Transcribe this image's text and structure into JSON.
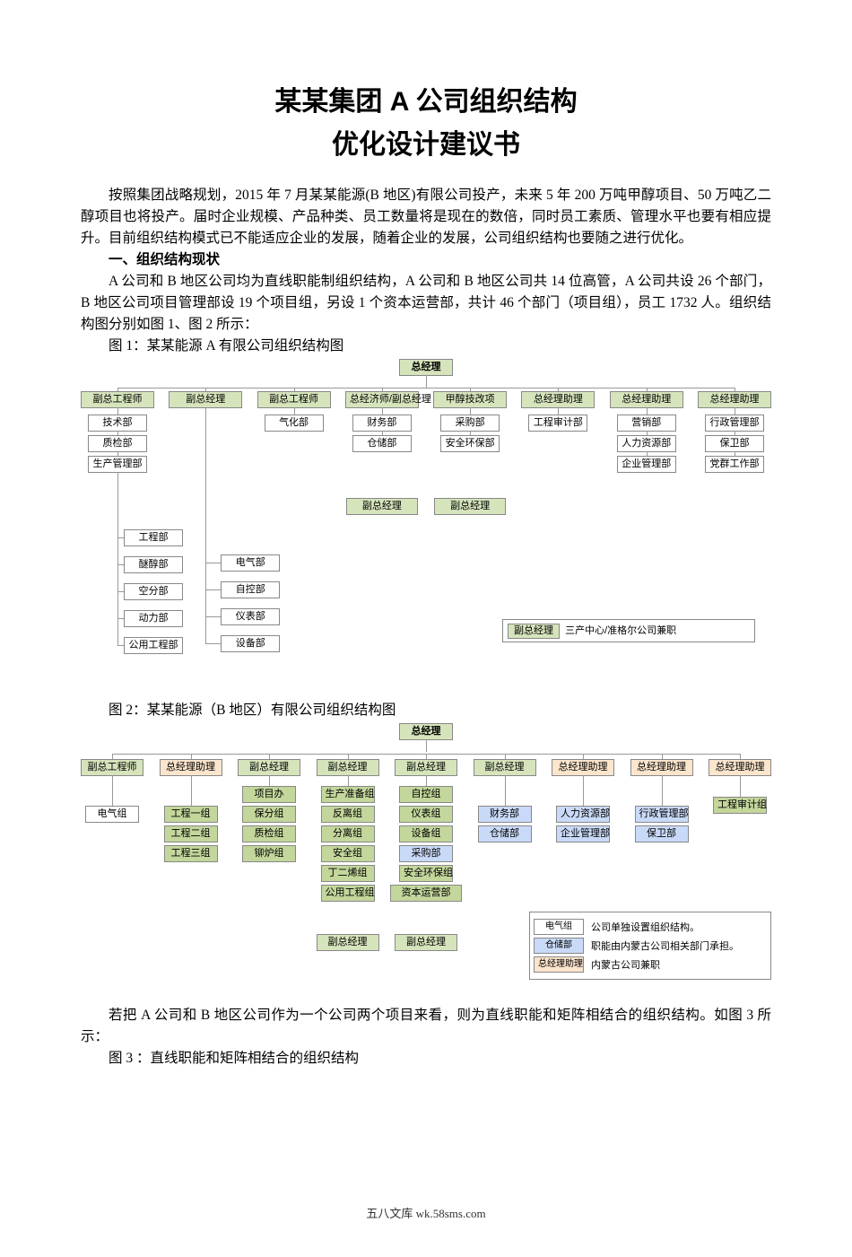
{
  "title_l1": "某某集团 A 公司组织结构",
  "title_l2": "优化设计建议书",
  "intro": "按照集团战略规划，2015 年 7 月某某能源(B 地区)有限公司投产，未来 5 年 200 万吨甲醇项目、50 万吨乙二醇项目也将投产。届时企业规模、产品种类、员工数量将是现在的数倍，同时员工素质、管理水平也要有相应提升。目前组织结构模式已不能适应企业的发展，随着企业的发展，公司组织结构也要随之进行优化。",
  "sec1": "一、组织结构现状",
  "sec1_body": "A 公司和 B 地区公司均为直线职能制组织结构，A 公司和 B 地区公司共 14 位高管，A 公司共设 26 个部门，B 地区公司项目管理部设 19 个项目组，另设 1 个资本运营部，共计 46 个部门（项目组），员工 1732 人。组织结构图分别如图 1、图 2 所示：",
  "fig1_caption": "图 1：某某能源 A 有限公司组织结构图",
  "fig2_caption": "图 2：某某能源（B 地区）有限公司组织结构图",
  "conclusion": "若把 A 公司和 B 地区公司作为一个公司两个项目来看，则为直线职能和矩阵相结合的组织结构。如图 3 所示：",
  "fig3_caption": "图 3 ：直线职能和矩阵相结合的组织结构",
  "footer": "五八文库 wk.58sms.com",
  "chart1": {
    "gm": "总经理",
    "vices": [
      "副总工程师",
      "副总经理",
      "副总工程师",
      "总经济师/副总经理",
      "甲醇技改项",
      "总经理助理",
      "总经理助理",
      "总经理助理"
    ],
    "col1": [
      "技术部",
      "质检部",
      "生产管理部"
    ],
    "col3": [
      "气化部"
    ],
    "col4": [
      "财务部",
      "仓储部"
    ],
    "col5": [
      "采购部",
      "安全环保部"
    ],
    "col6": [
      "工程审计部"
    ],
    "col7": [
      "营销部",
      "人力资源部",
      "企业管理部"
    ],
    "col8": [
      "行政管理部",
      "保卫部",
      "党群工作部"
    ],
    "sub_vice_l": "副总经理",
    "sub_vice_r": "副总经理",
    "left_branch": [
      "工程部",
      "醚醇部",
      "空分部",
      "动力部",
      "公用工程部"
    ],
    "right_branch": [
      "电气部",
      "自控部",
      "仪表部",
      "设备部"
    ],
    "note_vice": "副总经理",
    "note_text": "三产中心/准格尔公司兼职"
  },
  "chart2": {
    "gm": "总经理",
    "vices": [
      "副总工程师",
      "总经理助理",
      "副总经理",
      "副总经理",
      "副总经理",
      "副总经理",
      "总经理助理",
      "总经理助理",
      "总经理助理"
    ],
    "col1": [
      "电气组"
    ],
    "col2": [
      "工程一组",
      "工程二组",
      "工程三组"
    ],
    "col3": [
      "项目办",
      "保分组",
      "质检组",
      "铆炉组"
    ],
    "col4_top": "生产准备组",
    "col4": [
      "反离组",
      "分离组",
      "安全组",
      "丁二烯组",
      "公用工程组"
    ],
    "col5_top": "自控组",
    "col5": [
      "仪表组",
      "设备组",
      "采购部",
      "安全环保组"
    ],
    "col5_extra": "资本运营部",
    "col6": [
      "财务部",
      "仓储部"
    ],
    "col7": [
      "人力资源部",
      "企业管理部"
    ],
    "col8": [
      "行政管理部",
      "保卫部"
    ],
    "col9": [
      "工程审计组"
    ],
    "sub_vice_l": "副总经理",
    "sub_vice_r": "副总经理",
    "legend_items": [
      {
        "swatch": "电气组",
        "text": "公司单独设置组织结构。"
      },
      {
        "swatch": "仓储部",
        "text": "职能由内蒙古公司相关部门承担。"
      },
      {
        "swatch": "总经理助理",
        "text": "内蒙古公司兼职"
      }
    ]
  },
  "colors": {
    "green": "#d6e4bc",
    "dgreen": "#c3d69b",
    "blue": "#c9daf8",
    "peach": "#fce5cd",
    "border": "#888888",
    "line": "#999999"
  }
}
